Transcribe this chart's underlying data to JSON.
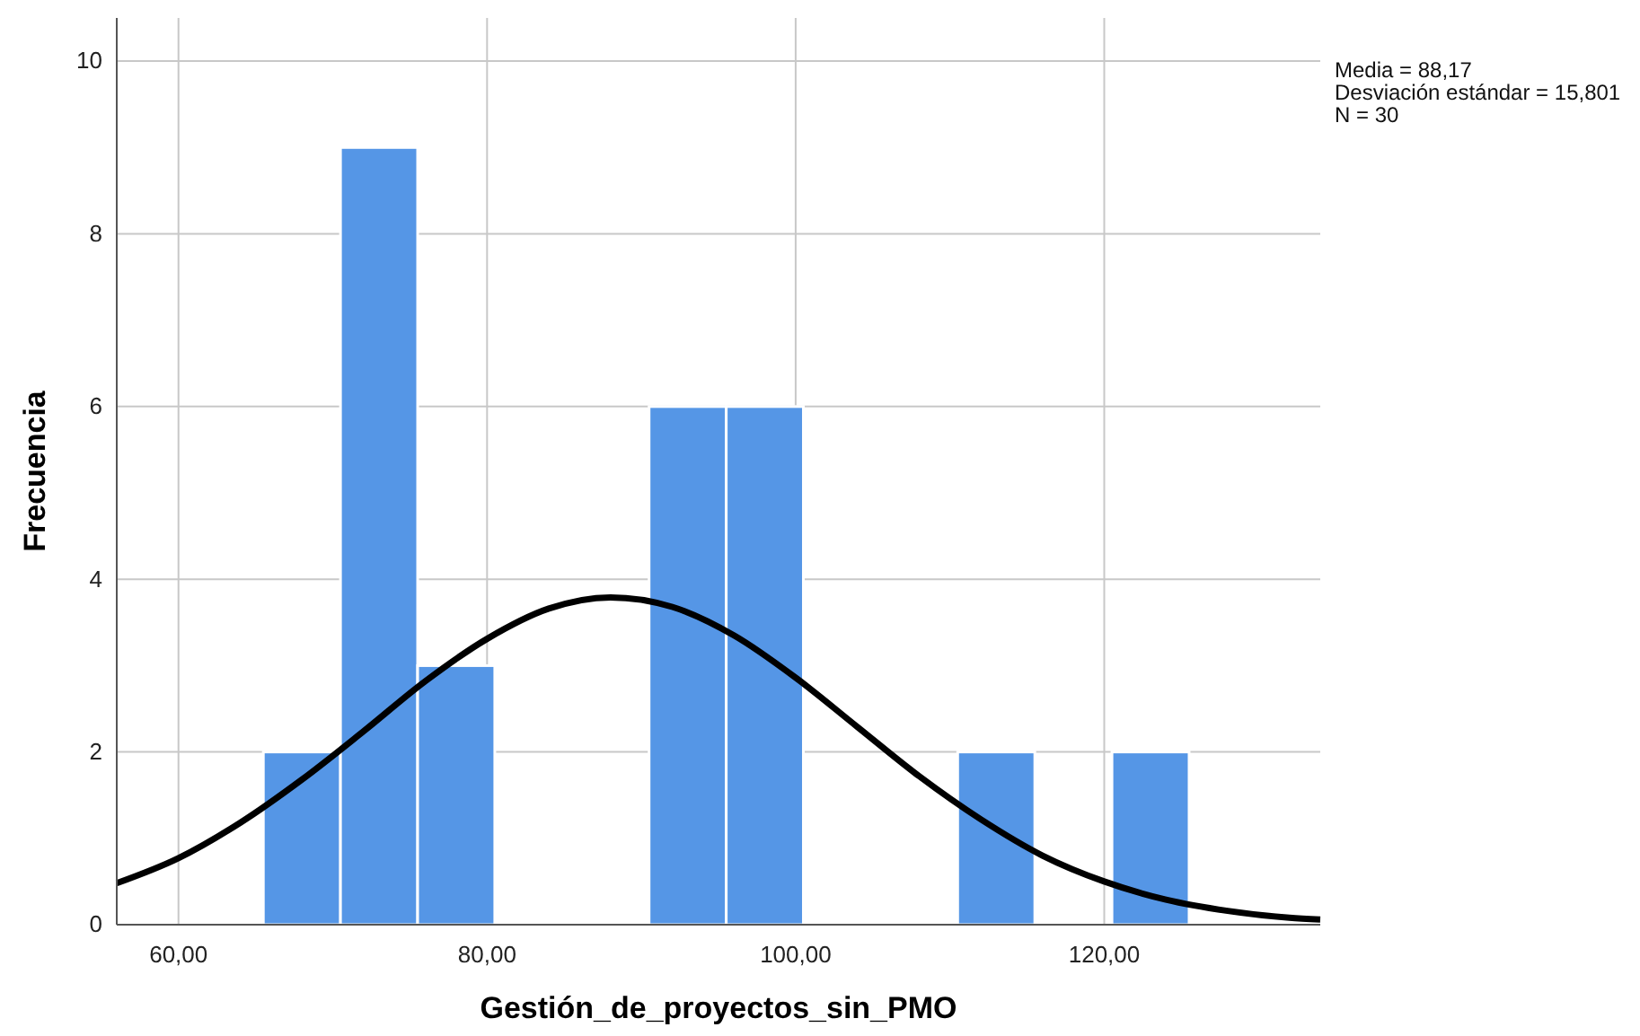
{
  "chart_data": {
    "type": "histogram",
    "xlabel": "Gestión_de_proyectos_sin_PMO",
    "ylabel": "Frecuencia",
    "bins": [
      65.5,
      70.5,
      75.5,
      80.5,
      85.5,
      90.5,
      95.5,
      100.5,
      105.5,
      110.5,
      115.5,
      120.5,
      125.5
    ],
    "values": [
      2,
      9,
      3,
      0,
      0,
      6,
      6,
      0,
      0,
      2,
      0,
      2
    ],
    "color": "#5596e6",
    "series": [
      {
        "type": "line",
        "color": "#000000",
        "x": [
          56,
          60,
          64,
          68,
          72,
          76,
          80,
          84,
          88,
          92,
          96,
          100,
          104,
          108,
          112,
          116,
          120,
          124,
          128,
          132,
          134
        ],
        "values": [
          0.48,
          0.77,
          1.18,
          1.68,
          2.24,
          2.82,
          3.31,
          3.66,
          3.79,
          3.68,
          3.35,
          2.86,
          2.29,
          1.72,
          1.22,
          0.8,
          0.5,
          0.29,
          0.16,
          0.08,
          0.06
        ]
      }
    ],
    "xlim": [
      56,
      134
    ],
    "xticks": [
      {
        "value": 60,
        "label": "60,00"
      },
      {
        "value": 80,
        "label": "80,00"
      },
      {
        "value": 100,
        "label": "100,00"
      },
      {
        "value": 120,
        "label": "120,00"
      }
    ],
    "ylim": [
      0,
      10.5
    ],
    "yticks": [
      0,
      2,
      4,
      6,
      8,
      10
    ],
    "grid": true,
    "annotations": [
      "Media = 88,17",
      "Desviación estándar = 15,801",
      "N = 30"
    ]
  }
}
